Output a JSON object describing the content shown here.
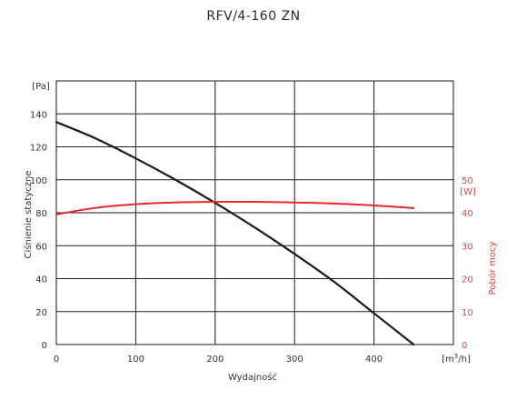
{
  "chart_data": {
    "type": "line",
    "title": "RFV/4-160 ZN",
    "xlabel": "Wydajność",
    "x_unit_prefix": "[m",
    "x_unit_sup": "3",
    "x_unit_suffix": "/h]",
    "ylabel_left": "Ciśnienie statyczne",
    "ylabel_left_unit": "[Pa]",
    "ylabel_right": "Pobór mocy",
    "ylabel_right_unit": "[W]",
    "xlim": [
      0,
      500
    ],
    "ylim_left": [
      0,
      160
    ],
    "ylim_right": [
      0,
      80
    ],
    "x_ticks": [
      "0",
      "100",
      "200",
      "300",
      "400"
    ],
    "y_left_ticks": [
      "0",
      "20",
      "40",
      "60",
      "80",
      "100",
      "120",
      "140"
    ],
    "y_right_ticks": [
      "0",
      "10",
      "20",
      "30",
      "40",
      "50"
    ],
    "grid": true,
    "colors": {
      "pressure": "#1a1a1a",
      "power": "#e8272a",
      "right_axis": "#e0443e"
    },
    "series": [
      {
        "axis": "left",
        "x": [
          0,
          50,
          100,
          150,
          200,
          250,
          300,
          350,
          400,
          450
        ],
        "y": [
          135,
          125,
          113,
          100,
          86,
          71,
          55,
          38,
          19,
          0
        ]
      },
      {
        "axis": "right",
        "x": [
          0,
          50,
          100,
          150,
          200,
          250,
          300,
          350,
          400,
          450
        ],
        "y": [
          39.5,
          41.5,
          42.6,
          43.1,
          43.3,
          43.3,
          43.1,
          42.8,
          42.2,
          41.4
        ]
      }
    ]
  }
}
